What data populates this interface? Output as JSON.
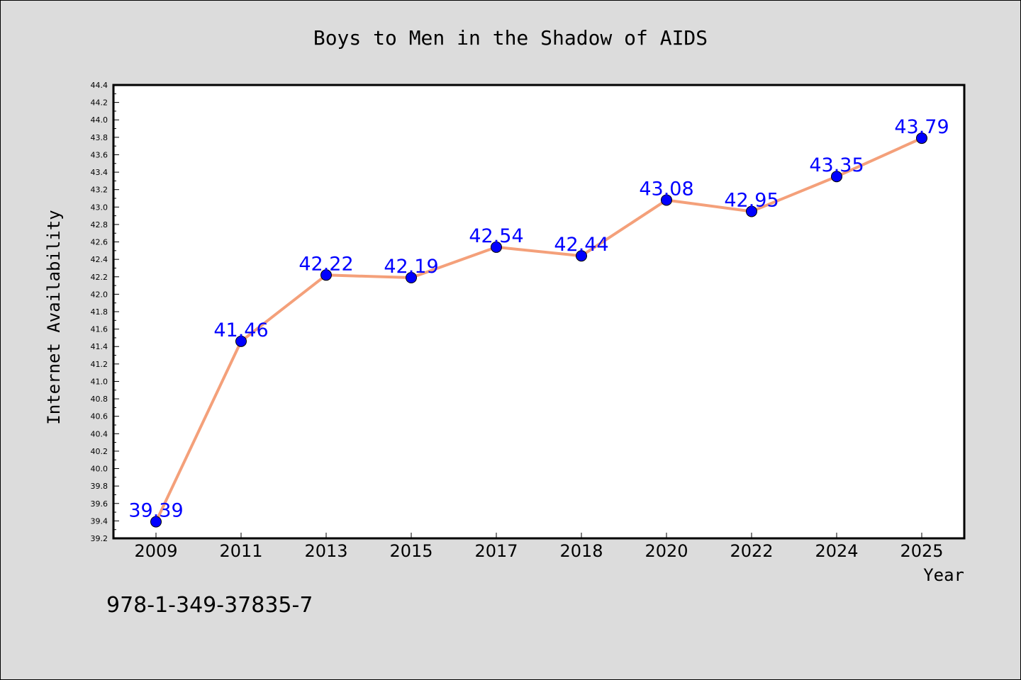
{
  "chart_data": {
    "type": "line",
    "title": "Boys to Men in the Shadow of AIDS",
    "xlabel": "Year",
    "ylabel": "Internet Availability",
    "categories": [
      "2009",
      "2011",
      "2013",
      "2015",
      "2017",
      "2018",
      "2020",
      "2022",
      "2024",
      "2025"
    ],
    "values": [
      39.39,
      41.46,
      42.22,
      42.19,
      42.54,
      42.44,
      43.08,
      42.95,
      43.35,
      43.79
    ],
    "data_labels": [
      "39.39",
      "41.46",
      "42.22",
      "42.19",
      "42.54",
      "42.44",
      "43.08",
      "42.95",
      "43.35",
      "43.79"
    ],
    "ylim": [
      39.2,
      44.4
    ],
    "yticks": [
      "39.2",
      "39.4",
      "39.6",
      "39.8",
      "40.0",
      "40.2",
      "40.4",
      "40.6",
      "40.8",
      "41.0",
      "41.2",
      "41.4",
      "41.6",
      "41.8",
      "42.0",
      "42.2",
      "42.4",
      "42.6",
      "42.8",
      "43.0",
      "43.2",
      "43.4",
      "43.6",
      "43.8",
      "44.0",
      "44.2",
      "44.4"
    ],
    "grid": false,
    "legend": "none",
    "colors": {
      "line": "#f4a07a",
      "marker": "#0000ff",
      "label": "#0000ff",
      "background": "#dcdcdc",
      "plot_bg": "#ffffff"
    },
    "footer": "978-1-349-37835-7"
  }
}
